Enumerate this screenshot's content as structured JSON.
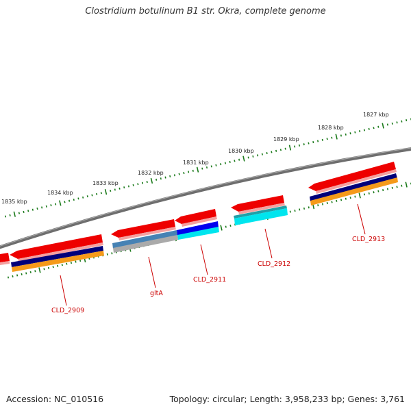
{
  "title": "Clostridium botulinum B1 str. Okra, complete genome",
  "footer": {
    "accession": "Accession: NC_010516",
    "summary": "Topology: circular; Length: 3,958,233 bp; Genes: 3,761"
  },
  "colors": {
    "backbone": "#808080",
    "tick": "#1a7a1a",
    "gene_forward": "#ee0000",
    "gene_label": "#cc0000",
    "navy": "#00007a",
    "orange": "#f59a1a",
    "cyan": "#00e5ee",
    "blue": "#0000ee",
    "steelblue": "#4682b4",
    "gray": "#aaaaaa"
  },
  "kbp_labels": [
    "1827 kbp",
    "1828 kbp",
    "1829 kbp",
    "1830 kbp",
    "1831 kbp",
    "1832 kbp",
    "1833 kbp",
    "1834 kbp",
    "1835 kbp"
  ],
  "gene_labels": [
    "CLD_2909",
    "gltA",
    "CLD_2911",
    "CLD_2912",
    "CLD_2913"
  ]
}
